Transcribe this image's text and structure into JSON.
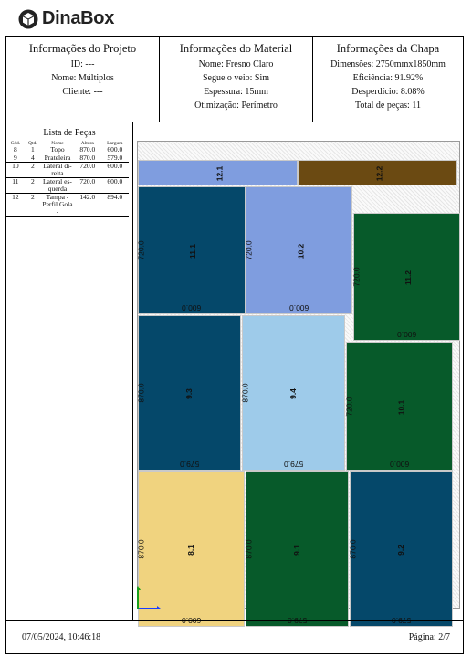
{
  "brand": {
    "name": "DinaBox"
  },
  "project": {
    "title": "Informações do Projeto",
    "id_label": "ID:",
    "id_value": "---",
    "name_label": "Nome:",
    "name_value": "Múltiplos",
    "client_label": "Cliente:",
    "client_value": "---"
  },
  "material": {
    "title": "Informações do Material",
    "name_label": "Nome:",
    "name_value": "Fresno Claro",
    "grain_label": "Segue o veio:",
    "grain_value": "Sim",
    "thickness_label": "Espessura:",
    "thickness_value": "15mm",
    "optimization_label": "Otimização:",
    "optimization_value": "Perímetro"
  },
  "sheet": {
    "title": "Informações da Chapa",
    "dimensions_label": "Dimensões:",
    "dimensions_value": "2750mmx1850mm",
    "efficiency_label": "Eficiência:",
    "efficiency_value": "91.92%",
    "waste_label": "Desperdício:",
    "waste_value": "8.08%",
    "total_label": "Total de peças:",
    "total_value": "11"
  },
  "piece_list": {
    "title": "Lista de Peças",
    "headers": [
      "Cód.",
      "Qtd.",
      "Nome",
      "Altura",
      "Largura"
    ],
    "rows": [
      [
        "8",
        "1",
        "Topo",
        "870.0",
        "600.0"
      ],
      [
        "9",
        "4",
        "Prateleira",
        "870.0",
        "579.0"
      ],
      [
        "10",
        "2",
        "Lateral di-reita",
        "720.0",
        "600.0"
      ],
      [
        "11",
        "2",
        "Lateral es-querda",
        "720.0",
        "600.0"
      ],
      [
        "12",
        "2",
        "Tampa - Perfil Gola -",
        "142.0",
        "894.0"
      ]
    ]
  },
  "layout_pieces": [
    {
      "code": "12.1",
      "h": "",
      "w": "",
      "color": "#7f9ddf",
      "text": "#000"
    },
    {
      "code": "12.2",
      "h": "",
      "w": "",
      "color": "#6b4a12",
      "text": "#000"
    },
    {
      "code": "11.1",
      "h": "720.0",
      "w": "600.0",
      "color": "#05486a",
      "text": "#000"
    },
    {
      "code": "10.2",
      "h": "720.0",
      "w": "600.0",
      "color": "#7f9ddf",
      "text": "#000"
    },
    {
      "code": "11.2",
      "h": "720.0",
      "w": "600.0",
      "color": "#075a2a",
      "text": "#000"
    },
    {
      "code": "9.3",
      "h": "870.0",
      "w": "579.0",
      "color": "#05486a",
      "text": "#000"
    },
    {
      "code": "9.4",
      "h": "870.0",
      "w": "579.0",
      "color": "#9ecbea",
      "text": "#000"
    },
    {
      "code": "10.1",
      "h": "720.0",
      "w": "600.0",
      "color": "#075a2a",
      "text": "#000"
    },
    {
      "code": "8.1",
      "h": "870.0",
      "w": "600.0",
      "color": "#f0d37f",
      "text": "#000"
    },
    {
      "code": "9.1",
      "h": "870.0",
      "w": "579.0",
      "color": "#075a2a",
      "text": "#000"
    },
    {
      "code": "9.2",
      "h": "870.0",
      "w": "579.0",
      "color": "#05486a",
      "text": "#000"
    }
  ],
  "footer": {
    "datetime": "07/05/2024, 10:46:18",
    "page": "Página: 2/7"
  }
}
